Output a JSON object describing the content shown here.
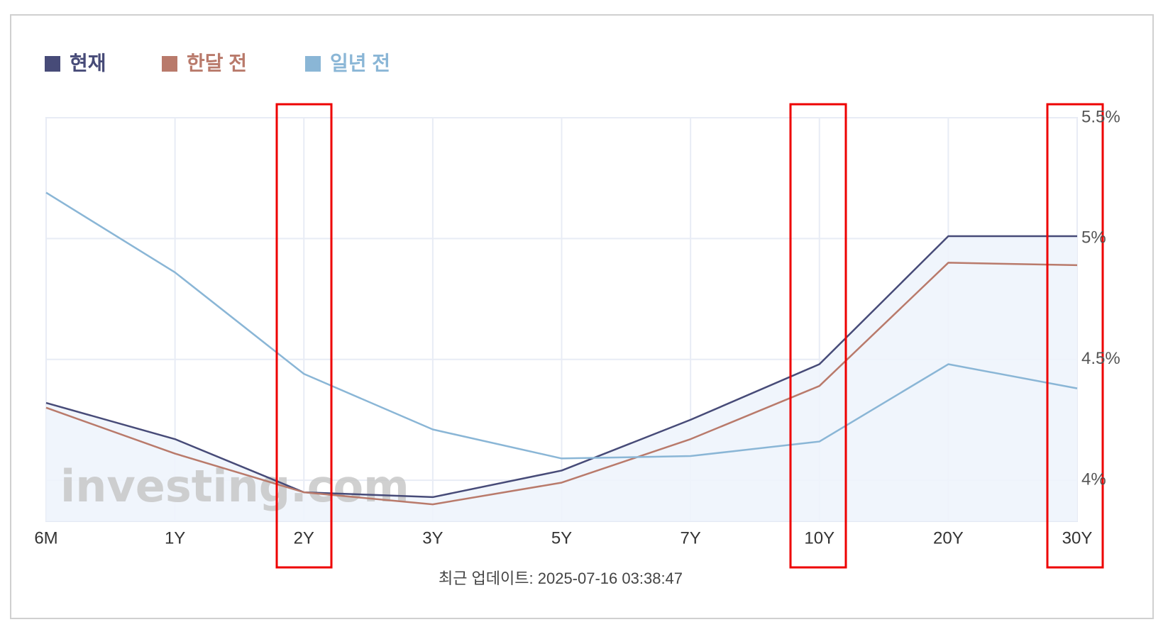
{
  "chart_data": {
    "type": "line",
    "categories": [
      "6M",
      "1Y",
      "2Y",
      "3Y",
      "5Y",
      "7Y",
      "10Y",
      "20Y",
      "30Y"
    ],
    "series": [
      {
        "name": "현재",
        "color": "#474b78",
        "values": [
          4.32,
          4.17,
          3.95,
          3.93,
          4.04,
          4.25,
          4.48,
          5.01,
          5.01
        ]
      },
      {
        "name": "한달 전",
        "color": "#b97a6b",
        "values": [
          4.3,
          4.11,
          3.95,
          3.9,
          3.99,
          4.17,
          4.39,
          4.9,
          4.89
        ]
      },
      {
        "name": "일년 전",
        "color": "#8ab6d6",
        "values": [
          5.19,
          4.86,
          4.44,
          4.21,
          4.09,
          4.1,
          4.16,
          4.48,
          4.38
        ]
      }
    ],
    "ylim": [
      3.83,
      5.5
    ],
    "yticks": [
      {
        "value": 4,
        "label": "4%"
      },
      {
        "value": 4.5,
        "label": "4.5%"
      },
      {
        "value": 5,
        "label": "5%"
      },
      {
        "value": 5.5,
        "label": "5.5%"
      }
    ],
    "grid": true,
    "watermark": "investing.com",
    "footer": "최근 업데이트: 2025-07-16 03:38:47"
  }
}
